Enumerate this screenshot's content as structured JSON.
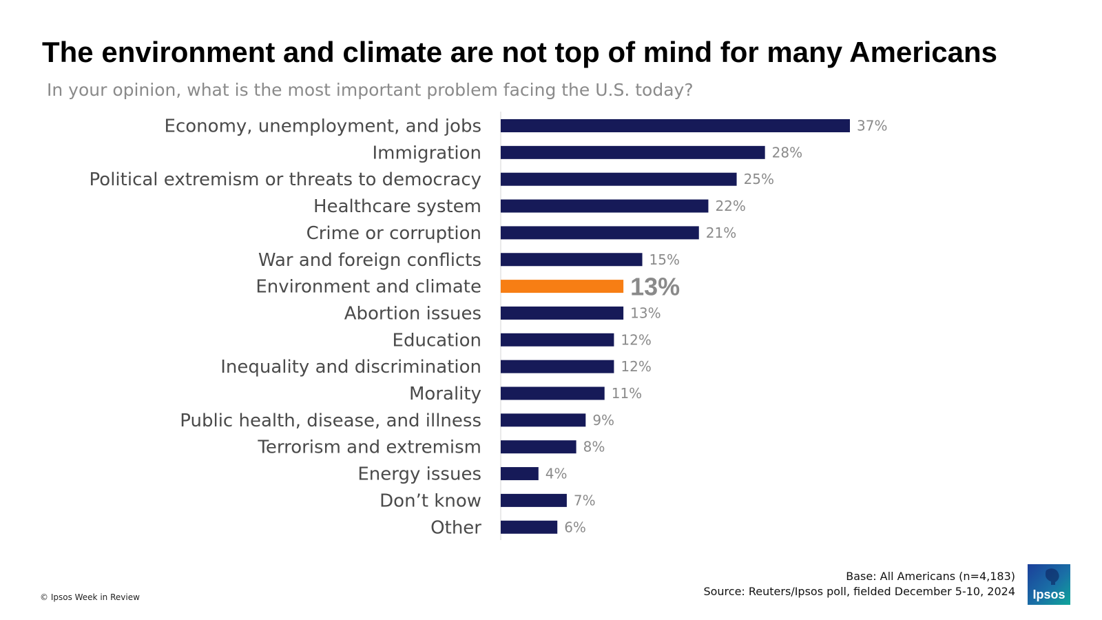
{
  "title": "The environment and climate are not top of mind for many Americans",
  "subtitle": "In your opinion, what is the most important problem facing the U.S. today?",
  "colors": {
    "bar": "#161a58",
    "highlight": "#f77e14",
    "value_label": "#8a8a8a",
    "category_label": "#4a4a4a"
  },
  "chart_data": {
    "type": "bar",
    "orientation": "horizontal",
    "categories": [
      "Economy, unemployment, and jobs",
      "Immigration",
      "Political extremism or threats to democracy",
      "Healthcare system",
      "Crime or corruption",
      "War and foreign conflicts",
      "Environment and climate",
      "Abortion issues",
      "Education",
      "Inequality and discrimination",
      "Morality",
      "Public health, disease, and illness",
      "Terrorism and extremism",
      "Energy issues",
      "Don’t know",
      "Other"
    ],
    "values": [
      37,
      28,
      25,
      22,
      21,
      15,
      13,
      13,
      12,
      12,
      11,
      9,
      8,
      4,
      7,
      6
    ],
    "value_labels": [
      "37%",
      "28%",
      "25%",
      "22%",
      "21%",
      "15%",
      "13%",
      "13%",
      "12%",
      "12%",
      "11%",
      "9%",
      "8%",
      "4%",
      "7%",
      "6%"
    ],
    "highlight_category": "Environment and climate",
    "xlim": [
      0,
      37
    ],
    "grid": false,
    "legend": "none"
  },
  "footer": {
    "base": "Base: All Americans (n=4,183)",
    "source": "Source: Reuters/Ipsos poll, fielded December 5-10, 2024",
    "copyright": "© Ipsos Week in Review"
  },
  "logo": {
    "text": "Ipsos",
    "icon": "ipsos-logo-icon"
  }
}
